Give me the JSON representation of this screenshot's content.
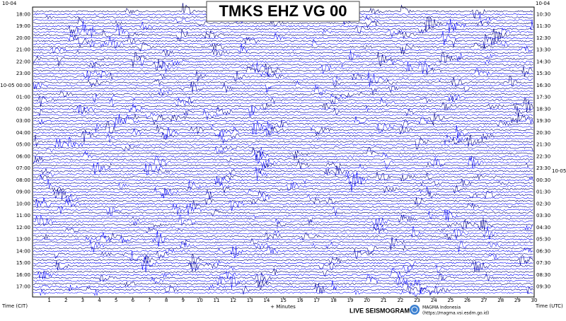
{
  "header": {
    "title": "TMKS EHZ VG 00"
  },
  "left_axis": {
    "date_top": "10-04",
    "label": "Time (CIT)",
    "hours": [
      "18:00",
      "19:00",
      "20:00",
      "21:00",
      "22:00",
      "23:00",
      "10-05 00:00",
      "01:00",
      "02:00",
      "03:00",
      "04:00",
      "05:00",
      "06:00",
      "07:00",
      "08:00",
      "09:00",
      "10:00",
      "11:00",
      "12:00",
      "13:00",
      "14:00",
      "15:00",
      "16:00",
      "17:00"
    ]
  },
  "right_axis": {
    "date_top": "10-04",
    "date_mid": "10-05",
    "label": "Time (UTC)",
    "hours": [
      "10:30",
      "11:30",
      "12:30",
      "13:30",
      "14:30",
      "15:30",
      "16:30",
      "17:30",
      "18:30",
      "19:30",
      "20:30",
      "21:30",
      "22:30",
      "23:30",
      "00:30",
      "01:30",
      "02:30",
      "03:30",
      "04:30",
      "05:30",
      "06:30",
      "07:30",
      "08:30",
      "09:30"
    ]
  },
  "x_axis": {
    "label": "+ Minutes",
    "ticks": [
      1,
      2,
      3,
      4,
      5,
      6,
      7,
      8,
      9,
      10,
      11,
      12,
      13,
      14,
      15,
      16,
      17,
      18,
      19,
      20,
      21,
      22,
      23,
      24,
      25,
      26,
      27,
      28,
      29,
      30
    ]
  },
  "footer": {
    "brand": "LIVE SEISMOGRAM",
    "org": "MAGMA Indonesia",
    "url": "(https://magma.vsi.esdm.go.id)"
  }
}
